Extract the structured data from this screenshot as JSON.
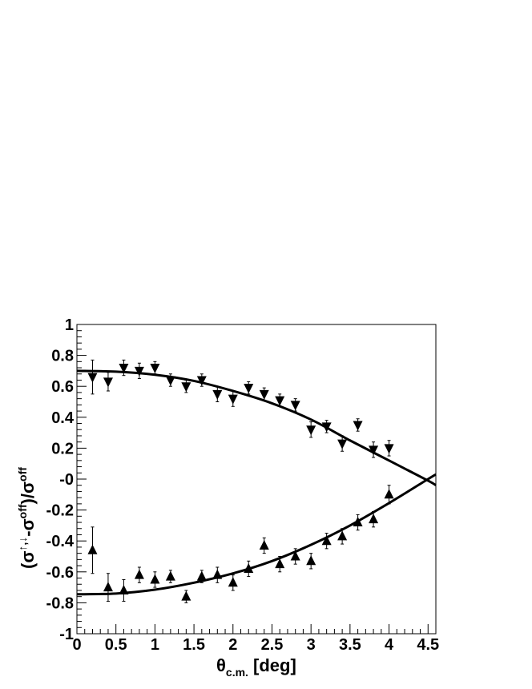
{
  "chart_data": {
    "type": "scatter",
    "title": "",
    "xlabel": {
      "main": "θ",
      "sub": "c.m.",
      "rest": " [deg]"
    },
    "ylabel": {
      "open": "(σ",
      "sup1": "↑,↓",
      "mid": "-σ",
      "sup2": "off",
      "close": ")/σ",
      "sup3": "off"
    },
    "xlim": [
      0,
      4.6
    ],
    "ylim": [
      -1,
      1
    ],
    "x_ticks": [
      0,
      0.5,
      1,
      1.5,
      2,
      2.5,
      3,
      3.5,
      4,
      4.5
    ],
    "x_tick_labels": [
      "0",
      "0.5",
      "1",
      "1.5",
      "2",
      "2.5",
      "3",
      "3.5",
      "4",
      "4.5"
    ],
    "y_ticks": [
      -1,
      -0.8,
      -0.6,
      -0.4,
      -0.2,
      0,
      0.2,
      0.4,
      0.6,
      0.8,
      1
    ],
    "y_tick_labels": [
      "-1",
      "-0.8",
      "-0.6",
      "-0.4",
      "-0.2",
      "-0",
      "0.2",
      "0.4",
      "0.6",
      "0.8",
      "1"
    ],
    "grid": false,
    "series": [
      {
        "marker": "triangle-down",
        "color": "#000000",
        "points": [
          {
            "x": 0.2,
            "y": 0.66,
            "err": 0.11
          },
          {
            "x": 0.4,
            "y": 0.63,
            "err": 0.06
          },
          {
            "x": 0.6,
            "y": 0.72,
            "err": 0.05
          },
          {
            "x": 0.8,
            "y": 0.7,
            "err": 0.05
          },
          {
            "x": 1.0,
            "y": 0.72,
            "err": 0.04
          },
          {
            "x": 1.2,
            "y": 0.64,
            "err": 0.04
          },
          {
            "x": 1.4,
            "y": 0.6,
            "err": 0.04
          },
          {
            "x": 1.6,
            "y": 0.64,
            "err": 0.04
          },
          {
            "x": 1.8,
            "y": 0.55,
            "err": 0.05
          },
          {
            "x": 2.0,
            "y": 0.52,
            "err": 0.05
          },
          {
            "x": 2.2,
            "y": 0.59,
            "err": 0.04
          },
          {
            "x": 2.4,
            "y": 0.55,
            "err": 0.04
          },
          {
            "x": 2.6,
            "y": 0.51,
            "err": 0.04
          },
          {
            "x": 2.8,
            "y": 0.48,
            "err": 0.04
          },
          {
            "x": 3.0,
            "y": 0.32,
            "err": 0.05
          },
          {
            "x": 3.2,
            "y": 0.34,
            "err": 0.04
          },
          {
            "x": 3.4,
            "y": 0.23,
            "err": 0.05
          },
          {
            "x": 3.6,
            "y": 0.35,
            "err": 0.04
          },
          {
            "x": 3.8,
            "y": 0.19,
            "err": 0.05
          },
          {
            "x": 4.0,
            "y": 0.2,
            "err": 0.05
          }
        ]
      },
      {
        "marker": "triangle-up",
        "color": "#000000",
        "points": [
          {
            "x": 0.2,
            "y": -0.46,
            "err": 0.15
          },
          {
            "x": 0.4,
            "y": -0.7,
            "err": 0.09
          },
          {
            "x": 0.6,
            "y": -0.72,
            "err": 0.07
          },
          {
            "x": 0.8,
            "y": -0.62,
            "err": 0.05
          },
          {
            "x": 1.0,
            "y": -0.65,
            "err": 0.05
          },
          {
            "x": 1.2,
            "y": -0.63,
            "err": 0.04
          },
          {
            "x": 1.4,
            "y": -0.76,
            "err": 0.04
          },
          {
            "x": 1.6,
            "y": -0.63,
            "err": 0.04
          },
          {
            "x": 1.8,
            "y": -0.62,
            "err": 0.05
          },
          {
            "x": 2.0,
            "y": -0.67,
            "err": 0.05
          },
          {
            "x": 2.2,
            "y": -0.58,
            "err": 0.05
          },
          {
            "x": 2.4,
            "y": -0.43,
            "err": 0.05
          },
          {
            "x": 2.6,
            "y": -0.55,
            "err": 0.05
          },
          {
            "x": 2.8,
            "y": -0.5,
            "err": 0.05
          },
          {
            "x": 3.0,
            "y": -0.53,
            "err": 0.05
          },
          {
            "x": 3.2,
            "y": -0.4,
            "err": 0.05
          },
          {
            "x": 3.4,
            "y": -0.37,
            "err": 0.05
          },
          {
            "x": 3.6,
            "y": -0.28,
            "err": 0.05
          },
          {
            "x": 3.8,
            "y": -0.26,
            "err": 0.05
          },
          {
            "x": 4.0,
            "y": -0.1,
            "err": 0.06
          }
        ]
      }
    ],
    "curves": [
      {
        "color": "#000000",
        "points": [
          [
            0,
            0.7
          ],
          [
            0.5,
            0.695
          ],
          [
            1.0,
            0.675
          ],
          [
            1.5,
            0.635
          ],
          [
            2.0,
            0.57
          ],
          [
            2.5,
            0.49
          ],
          [
            3.0,
            0.385
          ],
          [
            3.5,
            0.25
          ],
          [
            4.0,
            0.12
          ],
          [
            4.5,
            -0.01
          ],
          [
            4.6,
            -0.04
          ]
        ]
      },
      {
        "color": "#000000",
        "points": [
          [
            0,
            -0.745
          ],
          [
            0.5,
            -0.74
          ],
          [
            1.0,
            -0.715
          ],
          [
            1.5,
            -0.67
          ],
          [
            2.0,
            -0.61
          ],
          [
            2.5,
            -0.53
          ],
          [
            3.0,
            -0.425
          ],
          [
            3.5,
            -0.3
          ],
          [
            4.0,
            -0.155
          ],
          [
            4.5,
            0.0
          ],
          [
            4.6,
            0.03
          ]
        ]
      }
    ]
  }
}
